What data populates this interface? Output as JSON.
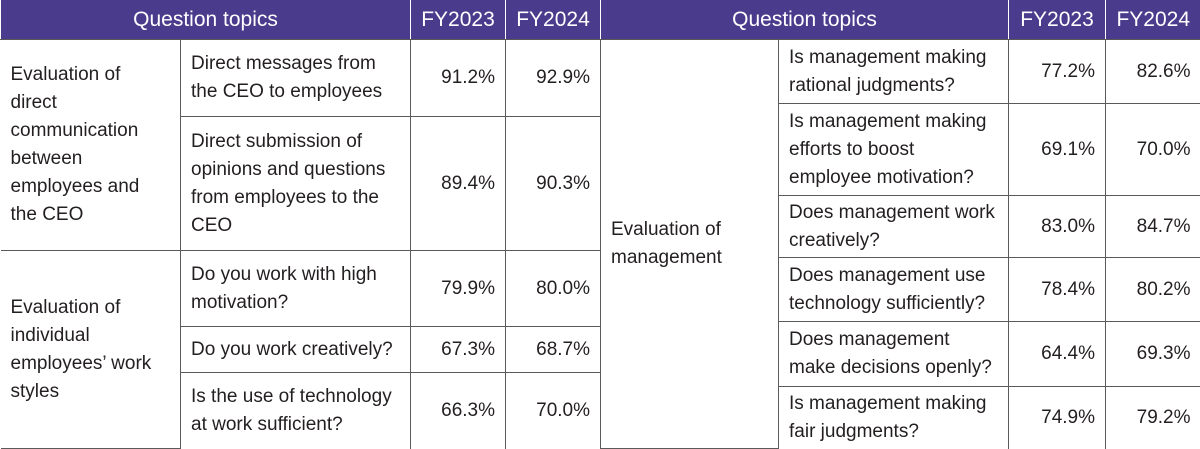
{
  "left": {
    "header": {
      "topics": "Question topics",
      "fy2023": "FY2023",
      "fy2024": "FY2024"
    },
    "groups": [
      {
        "category": "Evaluation of direct communication between employees and the CEO",
        "rows": [
          {
            "question": "Direct messages from the CEO to employees",
            "fy2023": "91.2%",
            "fy2024": "92.9%"
          },
          {
            "question": "Direct submission of opinions and questions from employees to the CEO",
            "fy2023": "89.4%",
            "fy2024": "90.3%"
          }
        ]
      },
      {
        "category": "Evaluation of individual employees’ work styles",
        "rows": [
          {
            "question": "Do you work with high motivation?",
            "fy2023": "79.9%",
            "fy2024": "80.0%"
          },
          {
            "question": "Do you work creatively?",
            "fy2023": "67.3%",
            "fy2024": "68.7%"
          },
          {
            "question": "Is the use of technology at work sufficient?",
            "fy2023": "66.3%",
            "fy2024": "70.0%"
          }
        ]
      }
    ]
  },
  "right": {
    "header": {
      "topics": "Question topics",
      "fy2023": "FY2023",
      "fy2024": "FY2024"
    },
    "groups": [
      {
        "category": "Evaluation of management",
        "rows": [
          {
            "question": "Is management making rational judgments?",
            "fy2023": "77.2%",
            "fy2024": "82.6%"
          },
          {
            "question": "Is management making efforts to boost employee motivation?",
            "fy2023": "69.1%",
            "fy2024": "70.0%"
          },
          {
            "question": "Does management work creatively?",
            "fy2023": "83.0%",
            "fy2024": "84.7%"
          },
          {
            "question": "Does management use technology sufficiently?",
            "fy2023": "78.4%",
            "fy2024": "80.2%"
          },
          {
            "question": "Does management make decisions openly?",
            "fy2023": "64.4%",
            "fy2024": "69.3%"
          },
          {
            "question": "Is management making fair judgments?",
            "fy2023": "74.9%",
            "fy2024": "79.2%"
          }
        ]
      }
    ]
  }
}
